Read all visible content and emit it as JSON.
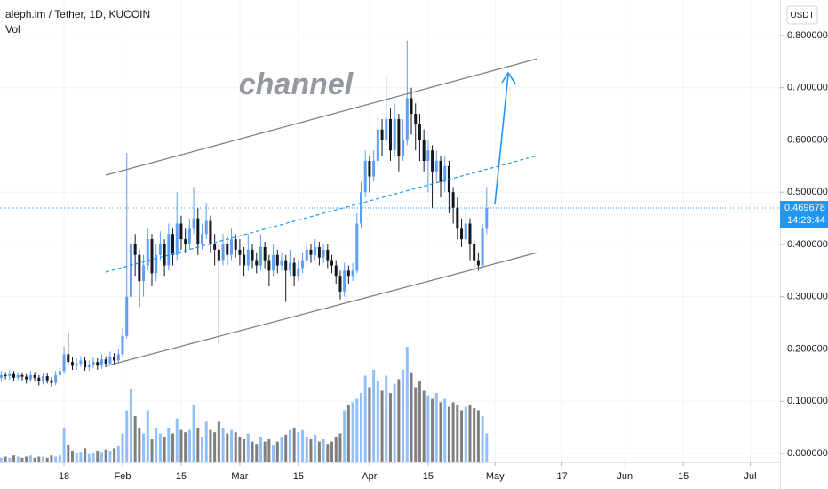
{
  "chart_data": {
    "type": "candlestick",
    "title": "aleph.im / Tether, 1D, KUCOIN",
    "indicator": "Vol",
    "currency": "USDT",
    "annotation": "channel",
    "countdown": "14:23:44",
    "up_color": "#5d9ff2",
    "down_color": "#131722",
    "volume_up_color": "#90bff9",
    "volume_down_color": "#7f7f7f",
    "xlim": [
      2.7,
      189.1
    ],
    "xticks": [
      {
        "value": 18,
        "label": "18"
      },
      {
        "value": 32,
        "label": "Feb"
      },
      {
        "value": 46,
        "label": "15"
      },
      {
        "value": 60,
        "label": "Mar"
      },
      {
        "value": 74,
        "label": "15"
      },
      {
        "value": 91,
        "label": "Apr"
      },
      {
        "value": 105,
        "label": "15"
      },
      {
        "value": 121,
        "label": "May"
      },
      {
        "value": 137,
        "label": "17"
      },
      {
        "value": 152,
        "label": "Jun"
      },
      {
        "value": 166,
        "label": "15"
      },
      {
        "value": 182,
        "label": "Jul"
      }
    ],
    "ylim": [
      -0.017,
      0.868
    ],
    "yticks": [
      {
        "value": 0,
        "label": "0.000000"
      },
      {
        "value": 0.1,
        "label": "0.100000"
      },
      {
        "value": 0.2,
        "label": "0.200000"
      },
      {
        "value": 0.3,
        "label": "0.300000"
      },
      {
        "value": 0.4,
        "label": "0.400000"
      },
      {
        "value": 0.5,
        "label": "0.500000"
      },
      {
        "value": 0.6,
        "label": "0.600000"
      },
      {
        "value": 0.7,
        "label": "0.700000"
      },
      {
        "value": 0.8,
        "label": "0.800000"
      }
    ],
    "volume_lim": [
      0,
      400
    ],
    "x": [
      3,
      4,
      5,
      6,
      7,
      8,
      9,
      10,
      11,
      12,
      13,
      14,
      15,
      16,
      17,
      18,
      19,
      20,
      21,
      22,
      23,
      24,
      25,
      26,
      27,
      28,
      29,
      30,
      31,
      32,
      33,
      34,
      35,
      36,
      37,
      38,
      39,
      40,
      41,
      42,
      43,
      44,
      45,
      46,
      47,
      48,
      49,
      50,
      51,
      52,
      53,
      54,
      55,
      56,
      57,
      58,
      59,
      60,
      61,
      62,
      63,
      64,
      65,
      66,
      67,
      68,
      69,
      70,
      71,
      72,
      73,
      74,
      75,
      76,
      77,
      78,
      79,
      80,
      81,
      82,
      83,
      84,
      85,
      86,
      87,
      88,
      89,
      90,
      91,
      92,
      93,
      94,
      95,
      96,
      97,
      98,
      99,
      100,
      101,
      102,
      103,
      104,
      105,
      106,
      107,
      108,
      109,
      110,
      111,
      112,
      113,
      114,
      115,
      116,
      117,
      118,
      119
    ],
    "open": [
      0.145,
      0.15,
      0.148,
      0.152,
      0.145,
      0.15,
      0.147,
      0.142,
      0.15,
      0.145,
      0.138,
      0.148,
      0.14,
      0.135,
      0.15,
      0.158,
      0.19,
      0.175,
      0.168,
      0.172,
      0.178,
      0.165,
      0.17,
      0.175,
      0.168,
      0.18,
      0.172,
      0.185,
      0.178,
      0.19,
      0.225,
      0.3,
      0.4,
      0.38,
      0.33,
      0.36,
      0.41,
      0.345,
      0.38,
      0.4,
      0.36,
      0.42,
      0.38,
      0.44,
      0.41,
      0.4,
      0.43,
      0.45,
      0.4,
      0.42,
      0.445,
      0.4,
      0.39,
      0.37,
      0.4,
      0.38,
      0.41,
      0.39,
      0.38,
      0.36,
      0.39,
      0.37,
      0.36,
      0.395,
      0.37,
      0.35,
      0.38,
      0.36,
      0.37,
      0.35,
      0.365,
      0.34,
      0.355,
      0.37,
      0.39,
      0.38,
      0.395,
      0.375,
      0.39,
      0.37,
      0.36,
      0.34,
      0.31,
      0.35,
      0.34,
      0.35,
      0.44,
      0.5,
      0.56,
      0.53,
      0.56,
      0.62,
      0.6,
      0.64,
      0.58,
      0.64,
      0.57,
      0.6,
      0.68,
      0.65,
      0.63,
      0.6,
      0.56,
      0.58,
      0.54,
      0.56,
      0.52,
      0.55,
      0.5,
      0.47,
      0.43,
      0.41,
      0.44,
      0.4,
      0.37,
      0.36,
      0.43
    ],
    "high": [
      0.158,
      0.156,
      0.16,
      0.158,
      0.156,
      0.155,
      0.152,
      0.158,
      0.156,
      0.15,
      0.155,
      0.153,
      0.146,
      0.158,
      0.166,
      0.205,
      0.23,
      0.185,
      0.182,
      0.186,
      0.184,
      0.178,
      0.185,
      0.182,
      0.19,
      0.186,
      0.195,
      0.192,
      0.2,
      0.24,
      0.575,
      0.42,
      0.42,
      0.39,
      0.38,
      0.43,
      0.42,
      0.4,
      0.425,
      0.41,
      0.44,
      0.43,
      0.5,
      0.455,
      0.43,
      0.45,
      0.51,
      0.47,
      0.44,
      0.48,
      0.455,
      0.42,
      0.4,
      0.42,
      0.415,
      0.43,
      0.42,
      0.41,
      0.395,
      0.42,
      0.4,
      0.385,
      0.42,
      0.405,
      0.38,
      0.4,
      0.39,
      0.385,
      0.38,
      0.39,
      0.375,
      0.37,
      0.385,
      0.405,
      0.4,
      0.41,
      0.405,
      0.4,
      0.4,
      0.38,
      0.37,
      0.35,
      0.365,
      0.36,
      0.365,
      0.46,
      0.52,
      0.58,
      0.57,
      0.58,
      0.65,
      0.64,
      0.72,
      0.66,
      0.67,
      0.65,
      0.64,
      0.79,
      0.7,
      0.67,
      0.65,
      0.62,
      0.6,
      0.59,
      0.58,
      0.57,
      0.57,
      0.56,
      0.51,
      0.49,
      0.45,
      0.47,
      0.45,
      0.41,
      0.385,
      0.44,
      0.51
    ],
    "low": [
      0.138,
      0.142,
      0.141,
      0.138,
      0.14,
      0.14,
      0.134,
      0.136,
      0.138,
      0.13,
      0.132,
      0.134,
      0.128,
      0.13,
      0.145,
      0.152,
      0.17,
      0.16,
      0.16,
      0.166,
      0.158,
      0.158,
      0.163,
      0.16,
      0.162,
      0.165,
      0.168,
      0.17,
      0.172,
      0.185,
      0.22,
      0.29,
      0.34,
      0.28,
      0.3,
      0.35,
      0.32,
      0.33,
      0.37,
      0.34,
      0.35,
      0.36,
      0.37,
      0.39,
      0.385,
      0.39,
      0.42,
      0.38,
      0.39,
      0.41,
      0.385,
      0.36,
      0.21,
      0.36,
      0.36,
      0.37,
      0.375,
      0.36,
      0.34,
      0.35,
      0.355,
      0.345,
      0.35,
      0.355,
      0.32,
      0.34,
      0.345,
      0.35,
      0.29,
      0.34,
      0.32,
      0.33,
      0.345,
      0.36,
      0.365,
      0.37,
      0.36,
      0.365,
      0.355,
      0.345,
      0.325,
      0.295,
      0.3,
      0.325,
      0.33,
      0.345,
      0.43,
      0.49,
      0.5,
      0.52,
      0.55,
      0.57,
      0.59,
      0.56,
      0.57,
      0.54,
      0.56,
      0.59,
      0.61,
      0.58,
      0.56,
      0.54,
      0.5,
      0.47,
      0.52,
      0.49,
      0.5,
      0.46,
      0.44,
      0.41,
      0.395,
      0.4,
      0.37,
      0.35,
      0.35,
      0.355,
      0.42
    ],
    "close": [
      0.15,
      0.148,
      0.152,
      0.145,
      0.15,
      0.147,
      0.142,
      0.15,
      0.145,
      0.138,
      0.148,
      0.14,
      0.135,
      0.15,
      0.158,
      0.19,
      0.175,
      0.168,
      0.172,
      0.178,
      0.165,
      0.17,
      0.175,
      0.168,
      0.18,
      0.172,
      0.185,
      0.178,
      0.19,
      0.225,
      0.3,
      0.4,
      0.38,
      0.33,
      0.36,
      0.41,
      0.345,
      0.38,
      0.4,
      0.36,
      0.42,
      0.38,
      0.44,
      0.41,
      0.4,
      0.43,
      0.45,
      0.4,
      0.42,
      0.445,
      0.4,
      0.39,
      0.37,
      0.4,
      0.38,
      0.41,
      0.39,
      0.38,
      0.36,
      0.39,
      0.37,
      0.36,
      0.395,
      0.37,
      0.35,
      0.38,
      0.36,
      0.37,
      0.35,
      0.365,
      0.34,
      0.355,
      0.37,
      0.39,
      0.38,
      0.395,
      0.375,
      0.39,
      0.37,
      0.36,
      0.34,
      0.31,
      0.35,
      0.34,
      0.35,
      0.44,
      0.5,
      0.56,
      0.53,
      0.56,
      0.62,
      0.6,
      0.64,
      0.58,
      0.64,
      0.57,
      0.6,
      0.68,
      0.65,
      0.63,
      0.6,
      0.56,
      0.58,
      0.54,
      0.56,
      0.52,
      0.55,
      0.5,
      0.47,
      0.43,
      0.41,
      0.44,
      0.4,
      0.37,
      0.36,
      0.43,
      0.469678
    ],
    "volume": [
      4,
      5,
      4,
      6,
      5,
      4,
      5,
      6,
      4,
      5,
      5,
      4,
      6,
      5,
      6,
      30,
      15,
      10,
      8,
      9,
      12,
      7,
      8,
      10,
      9,
      11,
      10,
      12,
      14,
      25,
      45,
      64,
      40,
      30,
      25,
      45,
      20,
      30,
      25,
      22,
      30,
      25,
      38,
      28,
      26,
      28,
      50,
      30,
      22,
      35,
      28,
      26,
      35,
      30,
      25,
      28,
      26,
      22,
      20,
      25,
      18,
      16,
      22,
      18,
      20,
      15,
      18,
      22,
      24,
      28,
      30,
      26,
      28,
      22,
      20,
      24,
      18,
      20,
      16,
      18,
      22,
      25,
      45,
      50,
      52,
      55,
      60,
      75,
      65,
      80,
      70,
      62,
      75,
      60,
      68,
      72,
      80,
      100,
      78,
      65,
      70,
      62,
      58,
      55,
      60,
      52,
      55,
      48,
      52,
      50,
      45,
      48,
      50,
      47,
      45,
      40,
      25
    ]
  }
}
